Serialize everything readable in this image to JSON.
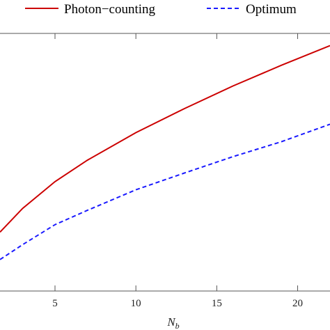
{
  "chart_data": {
    "type": "line",
    "title": "",
    "xlabel": "N_b",
    "ylabel": "",
    "xlim": [
      1.6,
      22
    ],
    "ylim": [
      0,
      1
    ],
    "grid": false,
    "legend_position": "top",
    "series": [
      {
        "name": "Photon−counting",
        "color": "#cc0000",
        "style": "solid",
        "x": [
          1.6,
          3,
          5,
          7,
          10,
          13,
          16,
          19,
          22
        ],
        "y": [
          0.2286,
          0.3207,
          0.4247,
          0.5079,
          0.6149,
          0.7082,
          0.796,
          0.8765,
          0.9526
        ]
      },
      {
        "name": "Optimum",
        "color": "#1a1aff",
        "style": "dashed",
        "x": [
          1.6,
          3,
          5,
          7,
          10,
          13,
          16,
          19,
          22
        ],
        "y": [
          0.1222,
          0.1799,
          0.2575,
          0.3133,
          0.3931,
          0.458,
          0.5215,
          0.5797,
          0.6477
        ]
      }
    ],
    "x_ticks": [
      {
        "value": 5,
        "label": "5"
      },
      {
        "value": 10,
        "label": "10"
      },
      {
        "value": 15,
        "label": "15"
      },
      {
        "value": 20,
        "label": "20"
      }
    ]
  }
}
